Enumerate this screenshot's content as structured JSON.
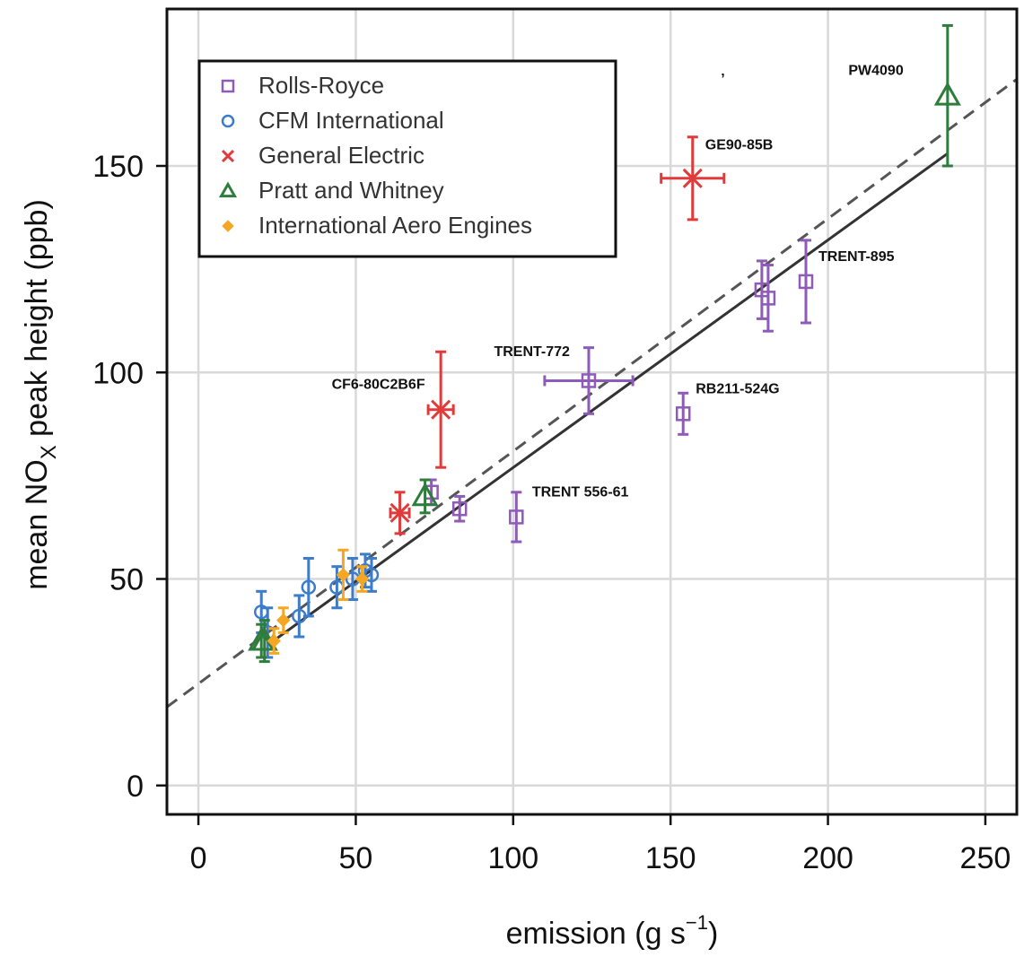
{
  "chart_data": {
    "type": "scatter",
    "title": "",
    "xlabel_main": "emission (g s",
    "xlabel_sup": "−1",
    "xlabel_close": ")",
    "ylabel_main": "mean NO",
    "ylabel_sub": "X",
    "ylabel_rest": " peak height (ppb)",
    "xlim": [
      -10,
      260
    ],
    "ylim": [
      -7,
      188
    ],
    "xticks": [
      0,
      50,
      100,
      150,
      200,
      250
    ],
    "yticks": [
      0,
      50,
      100,
      150
    ],
    "grid": true,
    "legend_position": "top-left",
    "stray_mark": {
      "x": 166,
      "y": 170,
      "text": "’"
    },
    "series": [
      {
        "name": "Rolls-Royce",
        "marker": "square",
        "color": "#8e5bb8",
        "points": [
          {
            "x": 74,
            "y": 71,
            "ey": 3
          },
          {
            "x": 83,
            "y": 67,
            "ey": 3
          },
          {
            "x": 101,
            "y": 65,
            "ey": 6
          },
          {
            "x": 124,
            "y": 98,
            "ey": 8,
            "ex": 14
          },
          {
            "x": 154,
            "y": 90,
            "ey": 5
          },
          {
            "x": 179,
            "y": 120,
            "ey": 7
          },
          {
            "x": 181,
            "y": 118,
            "ey": 8
          },
          {
            "x": 193,
            "y": 122,
            "ey": 10
          }
        ]
      },
      {
        "name": "CFM International",
        "marker": "circle",
        "color": "#3d7cc9",
        "points": [
          {
            "x": 20,
            "y": 42,
            "ey": 5
          },
          {
            "x": 22,
            "y": 37,
            "ey": 6
          },
          {
            "x": 32,
            "y": 41,
            "ey": 5
          },
          {
            "x": 35,
            "y": 48,
            "ey": 7
          },
          {
            "x": 44,
            "y": 48,
            "ey": 5
          },
          {
            "x": 49,
            "y": 50,
            "ey": 5
          },
          {
            "x": 53,
            "y": 52,
            "ey": 4
          },
          {
            "x": 55,
            "y": 51,
            "ey": 4
          }
        ]
      },
      {
        "name": "General Electric",
        "marker": "x",
        "color": "#e03a3a",
        "points": [
          {
            "x": 64,
            "y": 66,
            "ey": 5,
            "ex": 3
          },
          {
            "x": 77,
            "y": 91,
            "ey": 14,
            "ex": 4
          },
          {
            "x": 157,
            "y": 147,
            "ey": 10,
            "ex": 10
          }
        ]
      },
      {
        "name": "Pratt and Whitney",
        "marker": "triangle",
        "color": "#2e7d3c",
        "points": [
          {
            "x": 20,
            "y": 35,
            "ey": 4
          },
          {
            "x": 21,
            "y": 35,
            "ey": 5
          },
          {
            "x": 72,
            "y": 70,
            "ey": 4
          },
          {
            "x": 238,
            "y": 167,
            "ey": 17
          }
        ]
      },
      {
        "name": "International Aero Engines",
        "marker": "diamond",
        "color": "#f5a623",
        "points": [
          {
            "x": 24,
            "y": 35,
            "ey": 3
          },
          {
            "x": 27,
            "y": 40,
            "ey": 3
          },
          {
            "x": 46,
            "y": 51,
            "ey": 6
          },
          {
            "x": 52,
            "y": 50,
            "ey": 3
          }
        ]
      }
    ],
    "fits": [
      {
        "style": "solid",
        "color": "#333333",
        "x": [
          22,
          238
        ],
        "y": [
          34,
          153
        ]
      },
      {
        "style": "dashed",
        "color": "#555555",
        "x": [
          -10,
          260
        ],
        "y": [
          19,
          171
        ]
      }
    ],
    "annotations": [
      {
        "text": "PW4090",
        "x": 224,
        "y": 172,
        "anchor": "end"
      },
      {
        "text": "GE90-85B",
        "x": 161,
        "y": 154,
        "anchor": "start"
      },
      {
        "text": "TRENT-895",
        "x": 197,
        "y": 127,
        "anchor": "start"
      },
      {
        "text": "TRENT-772",
        "x": 118,
        "y": 104,
        "anchor": "end"
      },
      {
        "text": "RB211-524G",
        "x": 158,
        "y": 95,
        "anchor": "start"
      },
      {
        "text": "CF6-80C2B6F",
        "x": 72,
        "y": 96,
        "anchor": "end"
      },
      {
        "text": "TRENT 556-61",
        "x": 106,
        "y": 70,
        "anchor": "start"
      }
    ]
  }
}
